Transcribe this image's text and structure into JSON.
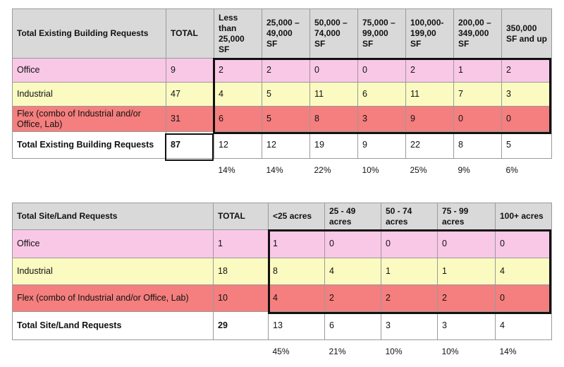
{
  "building": {
    "headers": [
      "Total Existing Building Requests",
      "TOTAL",
      "Less than 25,000 SF",
      "25,000 – 49,000 SF",
      "50,000 – 74,000 SF",
      "75,000 – 99,000 SF",
      "100,000-199,00 SF",
      "200,00 – 349,000 SF",
      "350,000 SF and up"
    ],
    "rows": [
      {
        "label": "Office",
        "total": "9",
        "values": [
          "2",
          "2",
          "0",
          "0",
          "2",
          "1",
          "2"
        ]
      },
      {
        "label": "Industrial",
        "total": "47",
        "values": [
          "4",
          "5",
          "11",
          "6",
          "11",
          "7",
          "3"
        ]
      },
      {
        "label": "Flex (combo of Industrial and/or Office, Lab)",
        "total": "31",
        "values": [
          "6",
          "5",
          "8",
          "3",
          "9",
          "0",
          "0"
        ]
      }
    ],
    "totals_row": {
      "label": "Total Existing Building Requests",
      "total": "87",
      "values": [
        "12",
        "12",
        "19",
        "9",
        "22",
        "8",
        "5"
      ]
    },
    "percentages": [
      "14%",
      "14%",
      "22%",
      "10%",
      "25%",
      "9%",
      "6%"
    ]
  },
  "land": {
    "headers": [
      "Total Site/Land Requests",
      "TOTAL",
      "<25 acres",
      "25 - 49 acres",
      "50 - 74 acres",
      "75 - 99 acres",
      "100+ acres"
    ],
    "rows": [
      {
        "label": "Office",
        "total": "1",
        "values": [
          "1",
          "0",
          "0",
          "0",
          "0"
        ]
      },
      {
        "label": "Industrial",
        "total": "18",
        "values": [
          "8",
          "4",
          "1",
          "1",
          "4"
        ]
      },
      {
        "label": "Flex (combo of Industrial and/or Office, Lab)",
        "total": "10",
        "values": [
          "4",
          "2",
          "2",
          "2",
          "0"
        ]
      }
    ],
    "totals_row": {
      "label": "Total Site/Land Requests",
      "total": "29",
      "values": [
        "13",
        "6",
        "3",
        "3",
        "4"
      ]
    },
    "percentages": [
      "45%",
      "21%",
      "10%",
      "10%",
      "14%"
    ]
  },
  "colors": {
    "office": "#f9c8e6",
    "industrial": "#fbfac1",
    "flex": "#f47f7e",
    "header": "#d9d9d9"
  }
}
